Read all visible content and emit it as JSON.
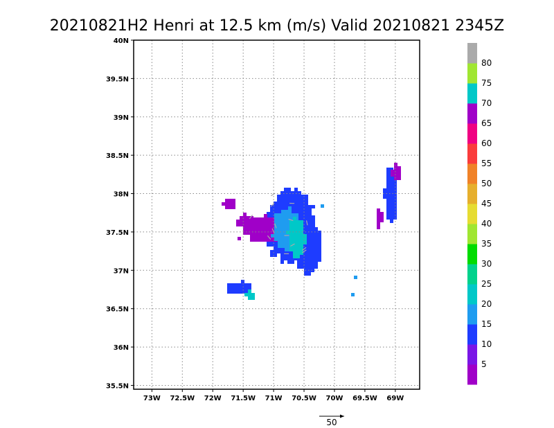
{
  "chart_data": {
    "type": "heatmap",
    "title": "20210821H2 Henri at 12.5 km (m/s) Valid 20210821 2345Z",
    "xlabel": "",
    "ylabel": "",
    "xlim": [
      -73.3,
      -68.6
    ],
    "ylim": [
      35.45,
      40.0
    ],
    "grid": true,
    "x_ticks": [
      {
        "value": -73.0,
        "label": "73W"
      },
      {
        "value": -72.5,
        "label": "72.5W"
      },
      {
        "value": -72.0,
        "label": "72W"
      },
      {
        "value": -71.5,
        "label": "71.5W"
      },
      {
        "value": -71.0,
        "label": "71W"
      },
      {
        "value": -70.5,
        "label": "70.5W"
      },
      {
        "value": -70.0,
        "label": "70W"
      },
      {
        "value": -69.5,
        "label": "69.5W"
      },
      {
        "value": -69.0,
        "label": "69W"
      }
    ],
    "y_ticks": [
      {
        "value": 35.5,
        "label": "35.5N"
      },
      {
        "value": 36.0,
        "label": "36N"
      },
      {
        "value": 36.5,
        "label": "36.5N"
      },
      {
        "value": 37.0,
        "label": "37N"
      },
      {
        "value": 37.5,
        "label": "37.5N"
      },
      {
        "value": 38.0,
        "label": "38N"
      },
      {
        "value": 38.5,
        "label": "38.5N"
      },
      {
        "value": 39.0,
        "label": "39N"
      },
      {
        "value": 39.5,
        "label": "39.5N"
      },
      {
        "value": 40.0,
        "label": "40N"
      }
    ],
    "colorbar": {
      "labels": [
        "5",
        "10",
        "15",
        "20",
        "25",
        "30",
        "35",
        "40",
        "45",
        "50",
        "55",
        "60",
        "65",
        "70",
        "75",
        "80"
      ],
      "colors": [
        "#a000c8",
        "#7a16e6",
        "#1e3cff",
        "#1f9cf0",
        "#00c8c8",
        "#00d28c",
        "#00dc00",
        "#a0e632",
        "#e6dc32",
        "#e6af2d",
        "#f08228",
        "#fa3c3c",
        "#f00082",
        "#a000c8",
        "#00c8c8",
        "#a0e632",
        "#aaaaaa"
      ]
    },
    "reference_vector": {
      "label": "50"
    },
    "regions": [
      {
        "name": "core",
        "lon": -70.75,
        "lat": 37.6,
        "rx": 0.42,
        "ry": 0.48,
        "level": 1
      },
      {
        "name": "core-east",
        "lon": -70.45,
        "lat": 37.3,
        "rx": 0.22,
        "ry": 0.35,
        "level": 1
      },
      {
        "name": "west-band",
        "lon": -71.2,
        "lat": 37.55,
        "rx": 0.3,
        "ry": 0.18,
        "level": 0
      },
      {
        "name": "west-arm",
        "lon": -71.5,
        "lat": 37.65,
        "rx": 0.12,
        "ry": 0.1,
        "level": 0
      },
      {
        "name": "nw-blob",
        "lon": -71.75,
        "lat": 37.9,
        "rx": 0.1,
        "ry": 0.08,
        "level": 0
      },
      {
        "name": "core-inner",
        "lon": -70.8,
        "lat": 37.55,
        "rx": 0.25,
        "ry": 0.28,
        "level": 2
      },
      {
        "name": "core-ring",
        "lon": -70.65,
        "lat": 37.45,
        "rx": 0.15,
        "ry": 0.25,
        "level": 3
      },
      {
        "name": "sw-band",
        "lon": -71.6,
        "lat": 36.8,
        "rx": 0.22,
        "ry": 0.08,
        "level": 1
      },
      {
        "name": "sw-band-tail",
        "lon": -71.4,
        "lat": 36.7,
        "rx": 0.08,
        "ry": 0.05,
        "level": 3
      },
      {
        "name": "east-band",
        "lon": -69.1,
        "lat": 38.0,
        "rx": 0.1,
        "ry": 0.38,
        "level": 1
      },
      {
        "name": "east-band-w",
        "lon": -69.3,
        "lat": 37.7,
        "rx": 0.06,
        "ry": 0.15,
        "level": 0
      },
      {
        "name": "east-band-n",
        "lon": -69.0,
        "lat": 38.3,
        "rx": 0.08,
        "ry": 0.1,
        "level": 0
      },
      {
        "name": "dot-1",
        "lon": -69.7,
        "lat": 36.95,
        "rx": 0.02,
        "ry": 0.02,
        "level": 2
      },
      {
        "name": "dot-2",
        "lon": -69.75,
        "lat": 36.72,
        "rx": 0.02,
        "ry": 0.02,
        "level": 2
      },
      {
        "name": "dot-3",
        "lon": -70.25,
        "lat": 37.88,
        "rx": 0.02,
        "ry": 0.03,
        "level": 2
      },
      {
        "name": "dot-4",
        "lon": -71.62,
        "lat": 37.45,
        "rx": 0.02,
        "ry": 0.02,
        "level": 0
      }
    ]
  }
}
